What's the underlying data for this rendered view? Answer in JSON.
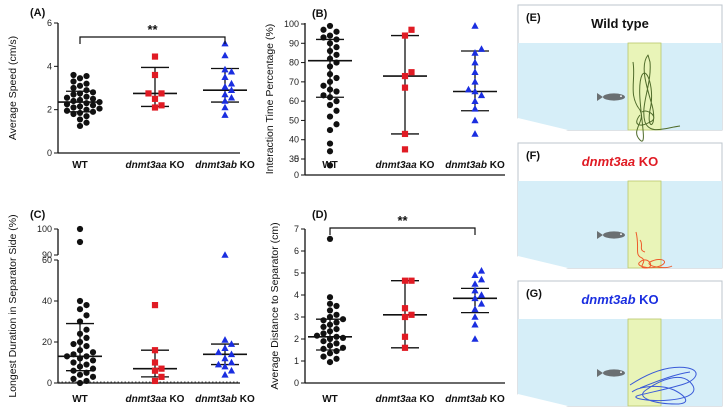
{
  "colors": {
    "wt": "#111111",
    "aa": "#e01b24",
    "ab": "#1a2ee0",
    "tank": "#d6eef8",
    "stripe": "#e9f4b8",
    "track_wt": "#4f6b2a",
    "track_aa": "#ee5a2a",
    "track_ab": "#3a5ad8"
  },
  "chart_data": [
    {
      "panel": "(A)",
      "type": "scatter",
      "ylabel": "Average Speed (cm/s)",
      "ylim": [
        0,
        6
      ],
      "yticks": [
        0,
        2,
        4,
        6
      ],
      "categories": [
        "WT",
        "dnmt3aa KO",
        "dnmt3ab KO"
      ],
      "significance": "**",
      "sig_between": [
        0,
        2
      ],
      "series": [
        {
          "category": "WT",
          "median": 2.35,
          "whisker": [
            1.9,
            2.85
          ],
          "values": [
            1.25,
            1.4,
            1.55,
            1.7,
            1.8,
            1.85,
            1.9,
            1.95,
            2.0,
            2.05,
            2.1,
            2.15,
            2.2,
            2.25,
            2.3,
            2.35,
            2.4,
            2.45,
            2.5,
            2.55,
            2.6,
            2.7,
            2.75,
            2.8,
            2.9,
            3.0,
            3.1,
            3.2,
            3.3,
            3.45,
            3.55,
            3.6
          ]
        },
        {
          "category": "dnmt3aa KO",
          "median": 2.75,
          "whisker": [
            2.15,
            3.95
          ],
          "values": [
            2.1,
            2.2,
            2.5,
            2.75,
            2.75,
            3.6,
            4.45
          ]
        },
        {
          "category": "dnmt3ab KO",
          "median": 2.9,
          "whisker": [
            2.35,
            3.9
          ],
          "values": [
            1.75,
            2.1,
            2.4,
            2.55,
            2.7,
            2.9,
            3.05,
            3.2,
            3.5,
            3.75,
            3.85,
            4.5,
            5.05
          ]
        }
      ]
    },
    {
      "panel": "(B)",
      "type": "scatter",
      "ylabel": "Interaction Time Percentage (%)",
      "ylim": [
        0,
        100
      ],
      "yticks": [
        0,
        5,
        30,
        40,
        50,
        60,
        70,
        80,
        90,
        100
      ],
      "categories": [
        "WT",
        "dnmt3aa KO",
        "dnmt3ab KO"
      ],
      "series": [
        {
          "category": "WT",
          "median": 81,
          "whisker": [
            62,
            92
          ],
          "values": [
            3,
            34,
            38,
            45,
            48,
            52,
            55,
            58,
            60,
            62,
            63,
            65,
            66,
            68,
            70,
            72,
            74,
            78,
            80,
            82,
            84,
            86,
            88,
            90,
            92,
            93,
            94,
            96,
            97,
            99
          ]
        },
        {
          "category": "dnmt3aa KO",
          "median": 73,
          "whisker": [
            43,
            94
          ],
          "values": [
            35,
            43,
            67,
            73,
            75,
            94,
            97
          ]
        },
        {
          "category": "dnmt3ab KO",
          "median": 65,
          "whisker": [
            55,
            86
          ],
          "values": [
            43,
            50,
            56,
            60,
            63,
            65,
            66,
            70,
            75,
            80,
            85,
            87,
            99
          ]
        }
      ]
    },
    {
      "panel": "(C)",
      "type": "scatter",
      "ylabel": "Longest  Duration in Separator Side (%)",
      "ylim": [
        0,
        100
      ],
      "yticks": [
        0,
        20,
        40,
        60,
        90,
        100
      ],
      "categories": [
        "WT",
        "dnmt3aa KO",
        "dnmt3ab KO"
      ],
      "series": [
        {
          "category": "WT",
          "median": 13,
          "whisker": [
            6,
            29
          ],
          "values": [
            0,
            1,
            2,
            3,
            4,
            5,
            6,
            7,
            8,
            9,
            10,
            11,
            12,
            13,
            13,
            14,
            15,
            16,
            18,
            19,
            20,
            22,
            24,
            26,
            30,
            33,
            36,
            38,
            40,
            95,
            100
          ]
        },
        {
          "category": "dnmt3aa KO",
          "median": 7,
          "whisker": [
            3,
            16
          ],
          "values": [
            1,
            3,
            6,
            7,
            10,
            16,
            38
          ]
        },
        {
          "category": "dnmt3ab KO",
          "median": 14,
          "whisker": [
            9,
            19
          ],
          "values": [
            4,
            6,
            8,
            9,
            10,
            12,
            14,
            15,
            17,
            19,
            21,
            63
          ]
        }
      ]
    },
    {
      "panel": "(D)",
      "type": "scatter",
      "ylabel": "Average Distance to Separator (cm)",
      "ylim": [
        0,
        7
      ],
      "yticks": [
        0,
        1,
        2,
        3,
        4,
        5,
        6,
        7
      ],
      "categories": [
        "WT",
        "dnmt3aa KO",
        "dnmt3ab KO"
      ],
      "significance": "**",
      "sig_between": [
        0,
        2
      ],
      "series": [
        {
          "category": "WT",
          "median": 2.1,
          "whisker": [
            1.5,
            2.9
          ],
          "values": [
            0.95,
            1.1,
            1.2,
            1.35,
            1.45,
            1.55,
            1.6,
            1.7,
            1.8,
            1.9,
            2.0,
            2.05,
            2.1,
            2.15,
            2.25,
            2.35,
            2.45,
            2.55,
            2.65,
            2.75,
            2.85,
            2.9,
            3.0,
            3.1,
            3.3,
            3.5,
            3.6,
            3.9,
            6.55
          ]
        },
        {
          "category": "dnmt3aa KO",
          "median": 3.1,
          "whisker": [
            1.6,
            4.65
          ],
          "values": [
            1.6,
            2.1,
            3.0,
            3.1,
            3.4,
            4.65,
            4.65
          ]
        },
        {
          "category": "dnmt3ab KO",
          "median": 3.85,
          "whisker": [
            3.2,
            4.3
          ],
          "values": [
            2.0,
            2.65,
            3.0,
            3.35,
            3.6,
            3.85,
            4.0,
            4.2,
            4.5,
            4.7,
            4.9,
            5.1
          ]
        }
      ]
    }
  ],
  "illustrations": [
    {
      "panel": "(E)",
      "title": "Wild type",
      "color_key": "wt"
    },
    {
      "panel": "(F)",
      "title": "dnmt3aa KO",
      "color_key": "aa"
    },
    {
      "panel": "(G)",
      "title": "dnmt3ab KO",
      "color_key": "ab"
    }
  ]
}
